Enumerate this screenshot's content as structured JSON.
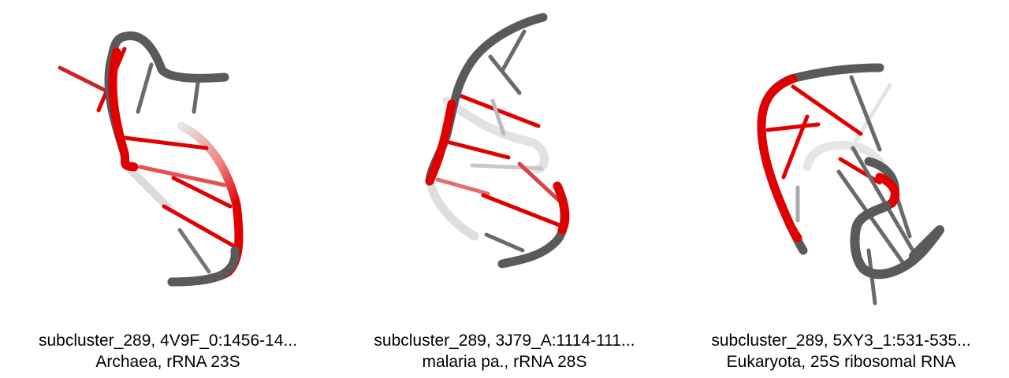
{
  "colors": {
    "background": "#ffffff",
    "backbone": "#5a5a5a",
    "highlight": "#e00000",
    "text": "#000000"
  },
  "panels": [
    {
      "line1": "subcluster_289, 4V9F_0:1456-14...",
      "line2": "Archaea, rRNA 23S"
    },
    {
      "line1": "subcluster_289, 3J79_A:1114-111...",
      "line2": "malaria pa., rRNA 28S"
    },
    {
      "line1": "subcluster_289, 5XY3_1:531-535...",
      "line2": "Eukaryota, 25S ribosomal RNA"
    }
  ]
}
